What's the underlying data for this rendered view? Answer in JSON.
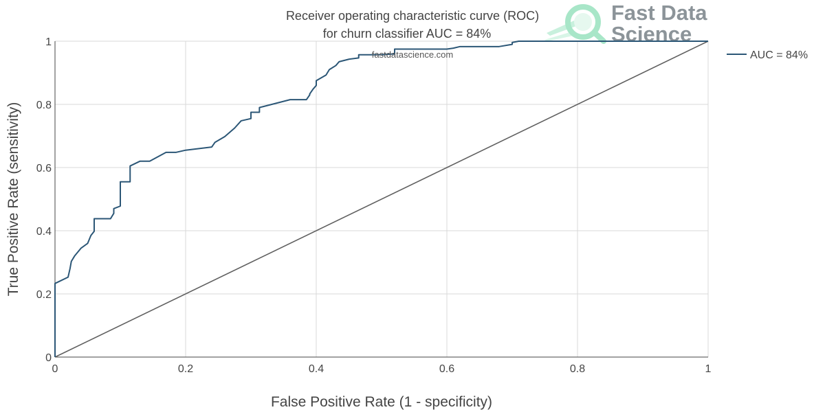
{
  "chart_data": {
    "type": "line",
    "title_line1": "Receiver operating characteristic curve (ROC)",
    "title_line2": "for churn classifier AUC = 84%",
    "xlabel": "False Positive Rate (1 - specificity)",
    "ylabel": "True Positive Rate (sensitivity)",
    "xlim": [
      0,
      1
    ],
    "ylim": [
      0,
      1
    ],
    "x_ticks": [
      0,
      0.2,
      0.4,
      0.6,
      0.8,
      1
    ],
    "x_tick_labels": [
      "0",
      "0.2",
      "0.4",
      "0.6",
      "0.8",
      "1"
    ],
    "y_ticks": [
      0,
      0.2,
      0.4,
      0.6,
      0.8,
      1
    ],
    "y_tick_labels": [
      "0",
      "0.2",
      "0.4",
      "0.6",
      "0.8",
      "1"
    ],
    "grid": true,
    "legend_position": "right",
    "series": [
      {
        "name": "AUC = 84%",
        "color": "#2b5676",
        "x": [
          0,
          0,
          0.02,
          0.023,
          0.025,
          0.03,
          0.04,
          0.05,
          0.055,
          0.06,
          0.06,
          0.085,
          0.09,
          0.09,
          0.1,
          0.1,
          0.115,
          0.115,
          0.13,
          0.145,
          0.17,
          0.185,
          0.2,
          0.24,
          0.245,
          0.26,
          0.275,
          0.285,
          0.3,
          0.3,
          0.313,
          0.313,
          0.36,
          0.385,
          0.39,
          0.39,
          0.395,
          0.4,
          0.4,
          0.415,
          0.42,
          0.43,
          0.435,
          0.45,
          0.465,
          0.465,
          0.5,
          0.52,
          0.52,
          0.6,
          0.61,
          0.62,
          0.68,
          0.7,
          0.7,
          0.71,
          1
        ],
        "y": [
          0,
          0.233,
          0.253,
          0.28,
          0.303,
          0.32,
          0.345,
          0.36,
          0.385,
          0.398,
          0.438,
          0.438,
          0.455,
          0.47,
          0.478,
          0.555,
          0.555,
          0.605,
          0.62,
          0.62,
          0.648,
          0.648,
          0.655,
          0.665,
          0.68,
          0.698,
          0.725,
          0.748,
          0.755,
          0.775,
          0.775,
          0.79,
          0.815,
          0.815,
          0.83,
          0.833,
          0.848,
          0.86,
          0.875,
          0.893,
          0.91,
          0.923,
          0.935,
          0.943,
          0.947,
          0.957,
          0.957,
          0.96,
          0.975,
          0.975,
          0.978,
          0.983,
          0.983,
          0.99,
          0.996,
          1,
          1
        ]
      },
      {
        "name": "",
        "color": "#5f5f5f",
        "x": [
          0,
          1
        ],
        "y": [
          0,
          1
        ]
      }
    ]
  },
  "watermark": {
    "url_text": "fastdatascience.com",
    "brand_line1": "Fast Data",
    "brand_line2": "Science",
    "logo_icon": "magnifier-icon",
    "logo_color": "#a8e6c8"
  },
  "colors": {
    "grid": "#d9d9d9",
    "axis": "#444444",
    "curve": "#2b5676",
    "diagonal": "#5f5f5f"
  }
}
